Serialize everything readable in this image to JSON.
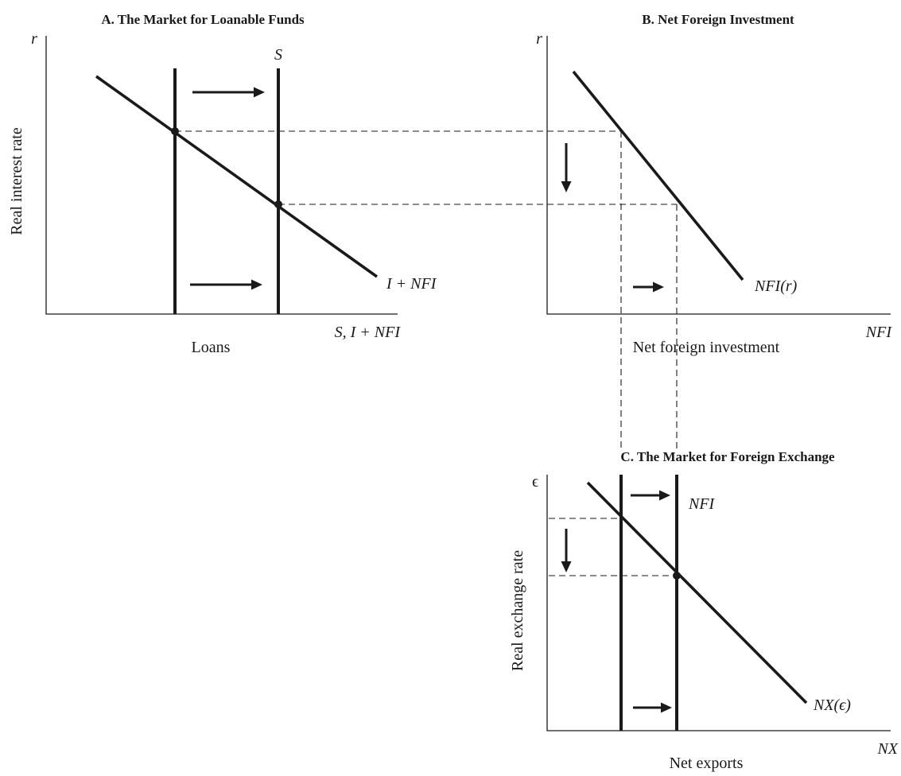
{
  "panel_a": {
    "title": "A. The Market for Loanable Funds",
    "y_axis_symbol": "r",
    "y_axis_label": "Real interest rate",
    "x_axis_label": "Loans",
    "x_axis_symbol": "S, I + NFI",
    "supply_label": "S",
    "demand_label": "I + NFI"
  },
  "panel_b": {
    "title": "B. Net Foreign Investment",
    "y_axis_symbol": "r",
    "x_axis_label": "Net foreign investment",
    "x_axis_symbol": "NFI",
    "curve_label": "NFI(r)"
  },
  "panel_c": {
    "title": "C. The Market for Foreign Exchange",
    "y_axis_symbol": "ϵ",
    "y_axis_label": "Real exchange rate",
    "x_axis_label": "Net exports",
    "x_axis_symbol": "NX",
    "supply_label": "NFI",
    "demand_label": "NX(ϵ)"
  }
}
